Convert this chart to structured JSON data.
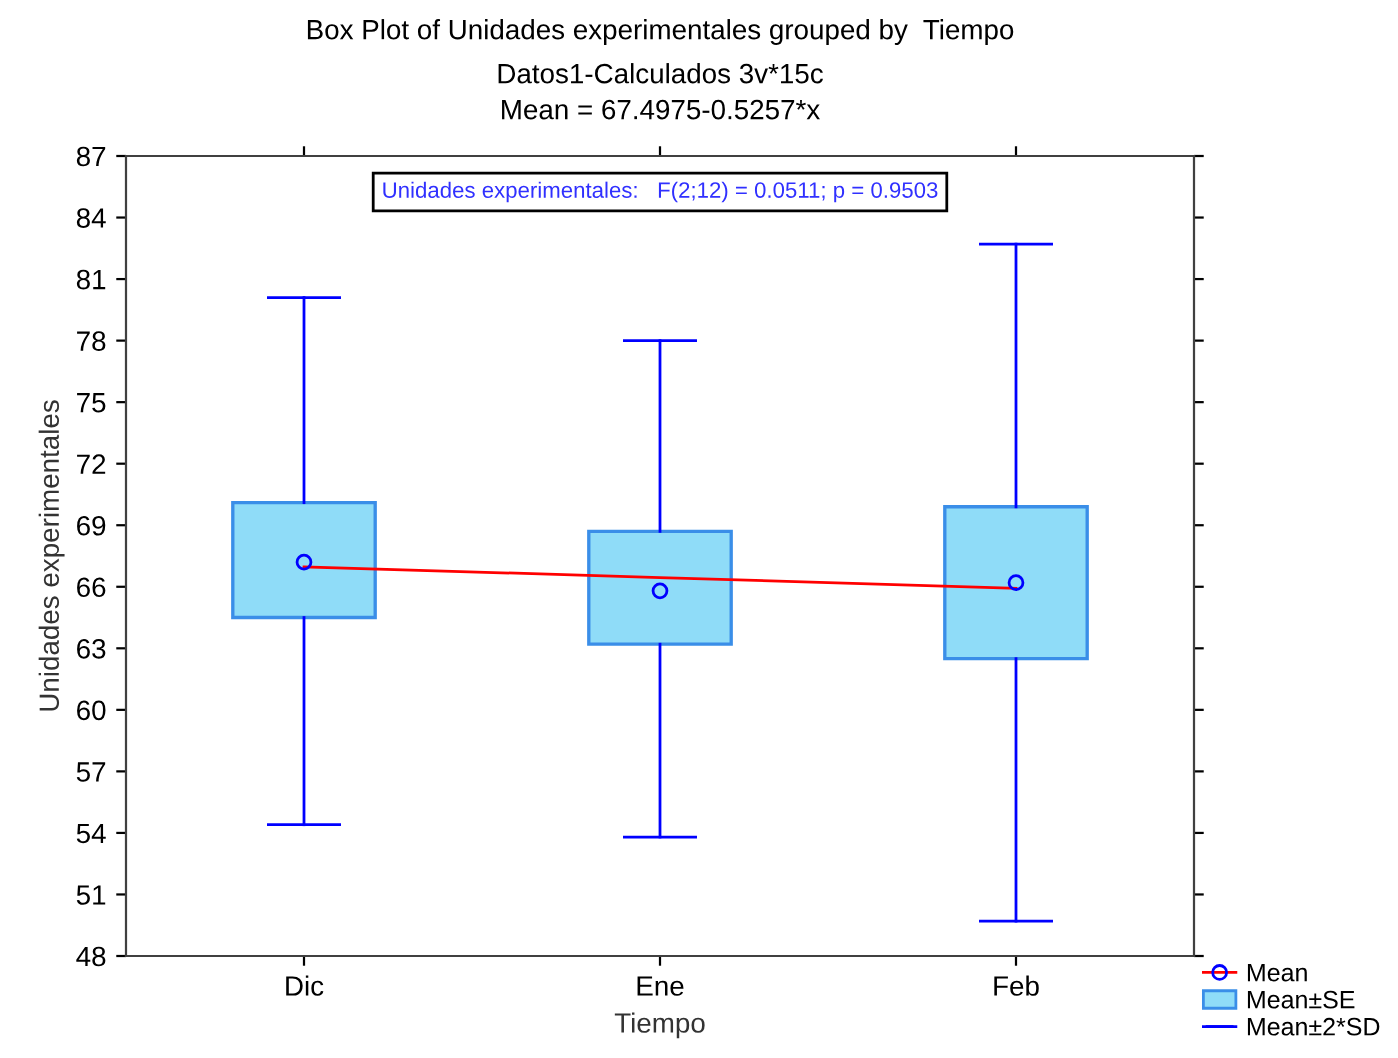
{
  "chart_data": {
    "type": "box",
    "title": "Box Plot of Unidades experimentales grouped by  Tiempo",
    "subtitle": "Datos1-Calculados 3v*15c\nMean = 67.4975-0.5257*x",
    "xlabel": "Tiempo",
    "ylabel": "Unidades experimentales",
    "categories": [
      "Dic",
      "Ene",
      "Feb"
    ],
    "ylim": [
      48,
      87
    ],
    "yticks": [
      48,
      51,
      54,
      57,
      60,
      63,
      66,
      69,
      72,
      75,
      78,
      81,
      84,
      87
    ],
    "series": [
      {
        "name": "Mean±SE",
        "color": "#8fdcf8",
        "boxes": [
          {
            "low": 54.4,
            "q1": 64.5,
            "q3": 70.1,
            "high": 80.1,
            "mean": 67.2
          },
          {
            "low": 53.8,
            "q1": 63.2,
            "q3": 68.7,
            "high": 78.0,
            "mean": 65.8
          },
          {
            "low": 49.7,
            "q1": 62.5,
            "q3": 69.9,
            "high": 82.7,
            "mean": 66.2
          }
        ]
      },
      {
        "type": "line",
        "name": "Mean",
        "color": "#ff0000",
        "values": [
          66.97,
          66.45,
          65.92
        ]
      }
    ],
    "annotations": [
      "Unidades experimentales:   F(2;12) = 0.0511; p = 0.9503",
      "Mean±2*SD"
    ],
    "grid": false,
    "legend": "bottom right"
  }
}
